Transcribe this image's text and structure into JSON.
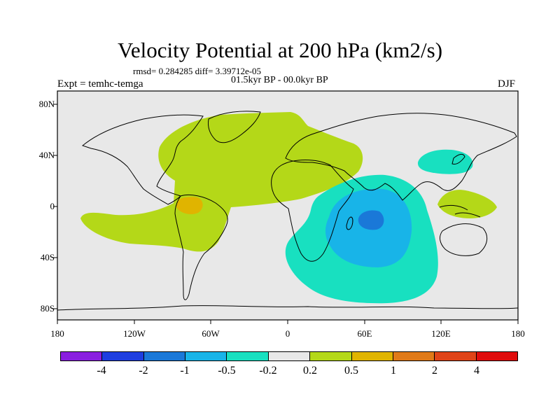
{
  "title": "Velocity Potential at 200 hPa (km2/s)",
  "stats": "rmsd= 0.284285 diff= 3.39712e-05",
  "subtitle": "01.5kyr BP - 00.0kyr BP",
  "experiment": "Expt = temhc-temga",
  "season": "DJF",
  "lon_labels": [
    "180",
    "120W",
    "60W",
    "0",
    "60E",
    "120E",
    "180"
  ],
  "lat_labels": [
    "80N",
    "40N",
    "0",
    "40S",
    "80S"
  ],
  "colorbar": {
    "labels": [
      "-4",
      "-2",
      "-1",
      "-0.5",
      "-0.2",
      "0.2",
      "0.5",
      "1",
      "2",
      "4"
    ],
    "colors": [
      "#8a1ee0",
      "#1e3ee0",
      "#1a78d8",
      "#18b4e8",
      "#18e0c0",
      "#e8e8e8",
      "#b4d818",
      "#e0b400",
      "#e07a18",
      "#e04418",
      "#e00c0c"
    ]
  },
  "regions": [
    {
      "name": "positive-anomaly-west",
      "level": "0.2 to 0.5"
    },
    {
      "name": "positive-anomaly-south-america",
      "level": "0.5 to 1"
    },
    {
      "name": "negative-anomaly-indian-ocean",
      "level": "-0.5 to -0.2"
    },
    {
      "name": "negative-anomaly-indian-core",
      "level": "-1 to -0.5"
    },
    {
      "name": "negative-anomaly-indian-center",
      "level": "-2 to -1"
    },
    {
      "name": "negative-anomaly-japan",
      "level": "-0.5 to -0.2"
    },
    {
      "name": "positive-anomaly-maritime",
      "level": "0.2 to 0.5"
    }
  ]
}
